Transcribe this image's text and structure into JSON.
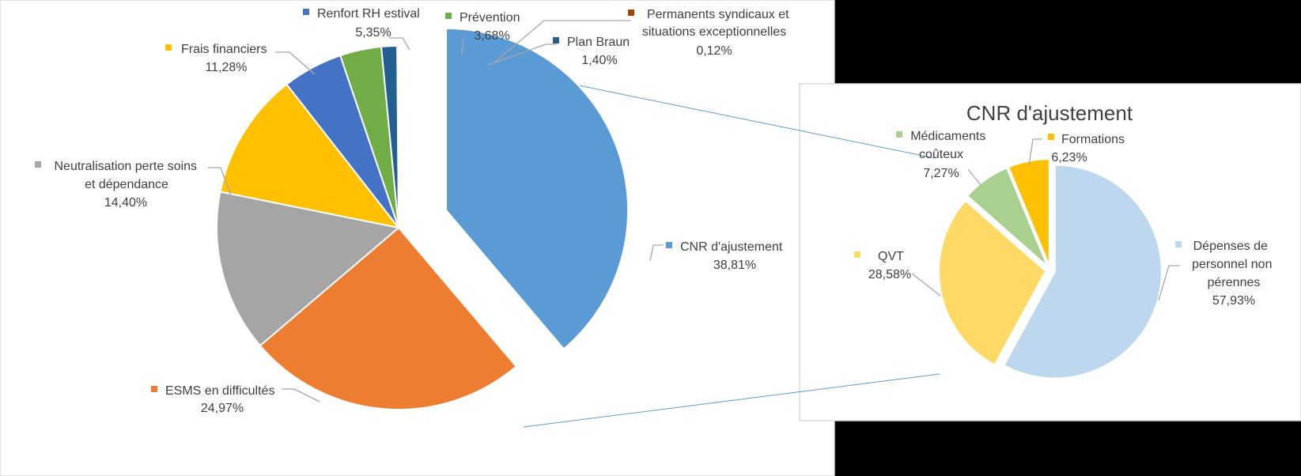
{
  "chart_data": [
    {
      "type": "pie",
      "title": "",
      "slices": [
        {
          "label": "CNR d'ajustement",
          "value_text": "38,81%",
          "value": 38.81,
          "color": "#5b9bd5"
        },
        {
          "label": "ESMS en difficultés",
          "value_text": "24,97%",
          "value": 24.97,
          "color": "#ed7d31"
        },
        {
          "label": "Neutralisation perte soins et dépendance",
          "value_text": "14,40%",
          "value": 14.4,
          "color": "#a5a5a5"
        },
        {
          "label": "Frais financiers",
          "value_text": "11,28%",
          "value": 11.28,
          "color": "#ffc000"
        },
        {
          "label": "Renfort RH estival",
          "value_text": "5,35%",
          "value": 5.35,
          "color": "#4472c4"
        },
        {
          "label": "Prévention",
          "value_text": "3,68%",
          "value": 3.68,
          "color": "#70ad47"
        },
        {
          "label": "Plan Braun",
          "value_text": "1,40%",
          "value": 1.4,
          "color": "#255e91"
        },
        {
          "label": "Permanents syndicaux et situations exceptionnelles",
          "value_text": "0,12%",
          "value": 0.12,
          "color": "#9e480e"
        }
      ],
      "exploded_slice": "CNR d'ajustement",
      "legend": "none (data labels with leader lines)"
    },
    {
      "type": "pie",
      "title": "CNR d'ajustement",
      "slices": [
        {
          "label": "Dépenses de personnel non pérennes",
          "value_text": "57,93%",
          "value": 57.93,
          "color": "#bdd7ee"
        },
        {
          "label": "QVT",
          "value_text": "28,58%",
          "value": 28.58,
          "color": "#ffd966"
        },
        {
          "label": "Médicaments coûteux",
          "value_text": "7,27%",
          "value": 7.27,
          "color": "#a9d08e"
        },
        {
          "label": "Formations",
          "value_text": "6,23%",
          "value": 6.23,
          "color": "#ffc000"
        }
      ],
      "legend": "none (data labels with leader lines)"
    }
  ]
}
